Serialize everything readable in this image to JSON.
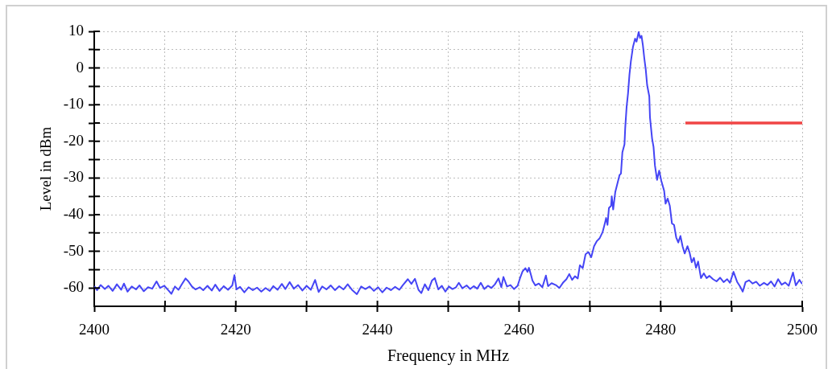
{
  "chart_data": {
    "type": "line",
    "xlabel": "Frequency in MHz",
    "ylabel": "Level in dBm",
    "xlim": [
      2400,
      2500
    ],
    "ylim": [
      -65,
      10
    ],
    "xticks": [
      2400,
      {
        "value": 2410,
        "label": null
      },
      2420,
      {
        "value": 2430,
        "label": null
      },
      2440,
      {
        "value": 2450,
        "label": null
      },
      2460,
      {
        "value": 2470,
        "label": null
      },
      2480,
      {
        "value": 2490,
        "label": null
      },
      2500
    ],
    "yticks": [
      -60,
      {
        "value": -55,
        "label": null
      },
      -50,
      {
        "value": -45,
        "label": null
      },
      -40,
      {
        "value": -35,
        "label": null
      },
      -30,
      {
        "value": -25,
        "label": null
      },
      -20,
      {
        "value": -15,
        "label": null
      },
      -10,
      {
        "value": -5,
        "label": null
      },
      0,
      {
        "value": 5,
        "label": null
      },
      10
    ],
    "grid": true,
    "marker": "none",
    "series": [
      {
        "color": "#4545f5",
        "x": [
          2400.0,
          2400.4,
          2400.9,
          2401.5,
          2402.0,
          2402.6,
          2403.2,
          2403.8,
          2404.2,
          2404.7,
          2405.3,
          2405.9,
          2406.4,
          2407.0,
          2407.6,
          2408.2,
          2408.8,
          2409.3,
          2409.9,
          2410.5,
          2410.9,
          2411.4,
          2411.9,
          2412.4,
          2412.9,
          2413.3,
          2413.8,
          2414.3,
          2414.9,
          2415.4,
          2416.0,
          2416.6,
          2417.1,
          2417.7,
          2418.3,
          2418.9,
          2419.5,
          2419.8,
          2420.1,
          2420.6,
          2421.2,
          2421.8,
          2422.4,
          2423.0,
          2423.6,
          2424.2,
          2424.8,
          2425.3,
          2425.9,
          2426.5,
          2427.0,
          2427.6,
          2428.2,
          2428.8,
          2429.4,
          2430.0,
          2430.6,
          2431.2,
          2431.7,
          2432.2,
          2432.8,
          2433.4,
          2434.0,
          2434.6,
          2435.2,
          2435.8,
          2436.4,
          2437.1,
          2437.7,
          2438.3,
          2438.9,
          2439.5,
          2440.1,
          2440.7,
          2441.3,
          2441.9,
          2442.5,
          2443.1,
          2443.6,
          2444.3,
          2444.8,
          2445.3,
          2445.8,
          2446.2,
          2446.7,
          2447.2,
          2447.7,
          2448.1,
          2448.6,
          2449.1,
          2449.6,
          2450.1,
          2450.6,
          2451.1,
          2451.5,
          2452.0,
          2452.6,
          2453.1,
          2453.6,
          2454.1,
          2454.6,
          2455.1,
          2455.6,
          2456.1,
          2456.6,
          2457.1,
          2457.5,
          2457.8,
          2458.3,
          2458.8,
          2459.3,
          2459.8,
          2460.2,
          2460.5,
          2460.9,
          2461.2,
          2461.4,
          2461.7,
          2461.9,
          2462.3,
          2462.8,
          2463.3,
          2463.8,
          2464.1,
          2464.6,
          2465.2,
          2465.7,
          2466.2,
          2466.7,
          2467.1,
          2467.5,
          2467.9,
          2468.3,
          2468.6,
          2469.0,
          2469.4,
          2469.8,
          2470.2,
          2470.6,
          2471.0,
          2471.4,
          2471.8,
          2472.1,
          2472.3,
          2472.5,
          2472.7,
          2473.0,
          2473.1,
          2473.3,
          2473.6,
          2473.9,
          2474.2,
          2474.4,
          2474.6,
          2474.9,
          2475.0,
          2475.2,
          2475.4,
          2475.6,
          2475.8,
          2476.1,
          2476.4,
          2476.6,
          2476.9,
          2477.1,
          2477.3,
          2477.5,
          2477.7,
          2477.9,
          2478.1,
          2478.4,
          2478.5,
          2478.8,
          2479.0,
          2479.2,
          2479.5,
          2479.8,
          2480.1,
          2480.5,
          2480.7,
          2481.0,
          2481.3,
          2481.6,
          2481.9,
          2482.2,
          2482.5,
          2482.8,
          2483.1,
          2483.4,
          2483.8,
          2484.1,
          2484.4,
          2484.7,
          2485.0,
          2485.3,
          2485.7,
          2486.1,
          2486.5,
          2486.9,
          2487.4,
          2487.9,
          2488.4,
          2488.9,
          2489.4,
          2489.8,
          2490.3,
          2490.8,
          2491.2,
          2491.6,
          2492.0,
          2492.5,
          2493.0,
          2493.5,
          2494.0,
          2494.6,
          2495.1,
          2495.6,
          2496.1,
          2496.6,
          2497.1,
          2497.6,
          2498.1,
          2498.7,
          2499.1,
          2499.6,
          2500.0
        ],
        "values": [
          -59.5,
          -60.6,
          -59.2,
          -60.3,
          -59.4,
          -60.8,
          -59.0,
          -60.5,
          -58.8,
          -61.0,
          -59.6,
          -60.4,
          -59.3,
          -60.9,
          -59.8,
          -60.2,
          -58.2,
          -60.0,
          -59.4,
          -60.7,
          -61.6,
          -59.6,
          -60.5,
          -58.9,
          -57.4,
          -58.2,
          -59.6,
          -60.4,
          -59.8,
          -60.6,
          -59.4,
          -60.7,
          -59.1,
          -60.8,
          -59.5,
          -60.5,
          -59.3,
          -56.5,
          -60.4,
          -59.7,
          -61.2,
          -59.8,
          -60.6,
          -59.9,
          -61.0,
          -60.0,
          -60.8,
          -59.5,
          -60.5,
          -58.9,
          -60.3,
          -58.4,
          -60.2,
          -59.2,
          -60.7,
          -59.4,
          -60.5,
          -57.8,
          -61.1,
          -59.6,
          -60.4,
          -59.3,
          -60.6,
          -59.5,
          -60.4,
          -59.0,
          -60.5,
          -61.7,
          -59.6,
          -60.3,
          -59.6,
          -60.8,
          -59.8,
          -61.2,
          -59.9,
          -60.6,
          -59.7,
          -60.5,
          -59.2,
          -57.6,
          -58.9,
          -57.5,
          -60.5,
          -61.4,
          -59.0,
          -60.6,
          -58.0,
          -57.3,
          -60.4,
          -59.4,
          -61.0,
          -59.6,
          -60.3,
          -59.8,
          -58.6,
          -60.1,
          -59.3,
          -60.3,
          -59.5,
          -60.2,
          -58.6,
          -60.3,
          -59.4,
          -60.0,
          -59.0,
          -57.4,
          -59.8,
          -57.0,
          -59.6,
          -59.2,
          -60.3,
          -59.4,
          -57.0,
          -55.5,
          -54.6,
          -55.6,
          -54.5,
          -56.5,
          -58.0,
          -59.3,
          -58.8,
          -59.8,
          -56.6,
          -59.5,
          -58.7,
          -59.2,
          -60.0,
          -58.6,
          -57.6,
          -56.2,
          -57.8,
          -56.8,
          -57.4,
          -53.8,
          -54.6,
          -50.8,
          -50.2,
          -51.6,
          -48.6,
          -47.2,
          -46.4,
          -44.8,
          -42.6,
          -40.9,
          -42.8,
          -38.2,
          -37.6,
          -35.0,
          -38.6,
          -33.8,
          -31.5,
          -29.2,
          -28.8,
          -23.0,
          -20.8,
          -16.4,
          -10.6,
          -6.9,
          -1.8,
          1.8,
          5.8,
          8.0,
          7.2,
          9.8,
          8.2,
          8.8,
          6.2,
          2.6,
          -0.4,
          -4.7,
          -7.7,
          -13.5,
          -19.3,
          -21.5,
          -26.6,
          -30.5,
          -28.0,
          -30.8,
          -33.5,
          -37.0,
          -35.6,
          -37.6,
          -42.4,
          -42.8,
          -46.2,
          -47.6,
          -45.8,
          -48.6,
          -50.6,
          -48.6,
          -50.4,
          -53.0,
          -51.8,
          -54.5,
          -52.8,
          -57.3,
          -56.0,
          -57.3,
          -56.7,
          -57.6,
          -58.2,
          -57.2,
          -58.4,
          -57.6,
          -58.6,
          -55.6,
          -58.3,
          -59.5,
          -61.0,
          -58.4,
          -57.9,
          -58.8,
          -58.3,
          -59.4,
          -58.6,
          -59.2,
          -58.2,
          -59.6,
          -57.6,
          -59.1,
          -58.5,
          -59.4,
          -55.8,
          -59.3,
          -57.8,
          -58.9
        ]
      },
      {
        "color": "#f04545",
        "x": [
          2483.5,
          2500
        ],
        "values": [
          -15,
          -15
        ]
      }
    ]
  }
}
